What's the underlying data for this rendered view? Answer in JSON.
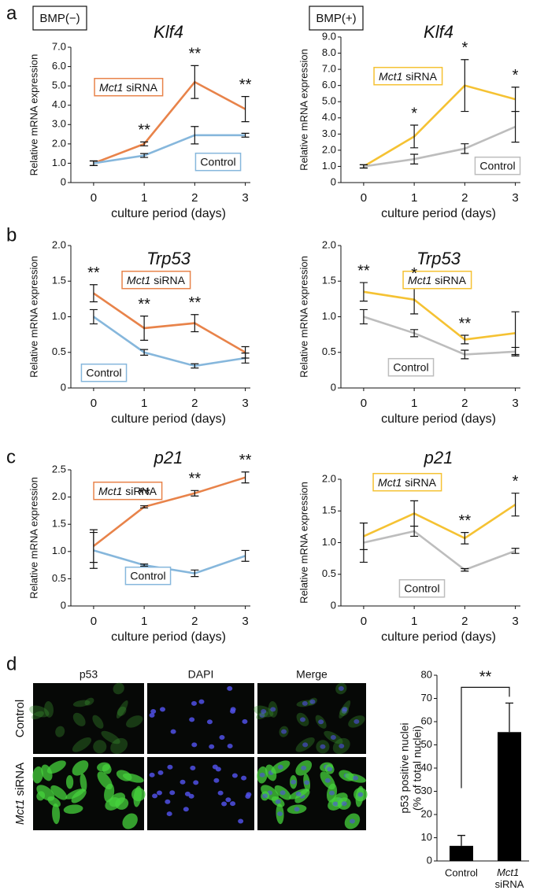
{
  "panel_labels": [
    "a",
    "b",
    "c",
    "d"
  ],
  "image_panel": {
    "columns": [
      "p53",
      "DAPI",
      "Merge"
    ],
    "rows": [
      "Control",
      "Mct1 siRNA"
    ]
  },
  "chart_data": [
    {
      "type": "line",
      "condition": "BMP(−)",
      "title": "Klf4",
      "xlabel": "culture period (days)",
      "ylabel": "Relative mRNA expression",
      "x": [
        0,
        1,
        2,
        3
      ],
      "xlim": [
        -0.45,
        3.1
      ],
      "xticks": [
        0,
        1,
        2,
        3
      ],
      "ylim": [
        0,
        7
      ],
      "yticks": [
        0,
        {
          "value": 1,
          "label": "1.0"
        },
        {
          "value": 2,
          "label": "2.0"
        },
        {
          "value": 3,
          "label": "3.0"
        },
        {
          "value": 4,
          "label": "4.0"
        },
        {
          "value": 5,
          "label": "5.0"
        },
        {
          "value": 6,
          "label": "6.0"
        },
        {
          "value": 7,
          "label": "7.0"
        }
      ],
      "series": [
        {
          "name": "Mct1 siRNA",
          "color": "#e8834a",
          "values": [
            1.0,
            2.0,
            5.2,
            3.8
          ],
          "errors": [
            0.12,
            0.1,
            0.85,
            0.65
          ]
        },
        {
          "name": "Control",
          "color": "#86b7dc",
          "values": [
            1.0,
            1.4,
            2.45,
            2.45
          ],
          "errors": [
            0.12,
            0.1,
            0.45,
            0.1
          ]
        }
      ],
      "stars": [
        null,
        "**",
        "**",
        "**"
      ]
    },
    {
      "type": "line",
      "condition": "BMP(+)",
      "title": "Klf4",
      "xlabel": "culture period (days)",
      "ylabel": "Relative mRNA expression",
      "x": [
        0,
        1,
        2,
        3
      ],
      "xlim": [
        -0.45,
        3.1
      ],
      "xticks": [
        0,
        1,
        2,
        3
      ],
      "ylim": [
        0,
        9
      ],
      "yticks": [
        0,
        {
          "value": 1,
          "label": "1.0"
        },
        {
          "value": 2,
          "label": "2.0"
        },
        {
          "value": 3,
          "label": "3.0"
        },
        {
          "value": 4,
          "label": "4.0"
        },
        {
          "value": 5,
          "label": "5.0"
        },
        {
          "value": 6,
          "label": "6.0"
        },
        {
          "value": 7,
          "label": "7.0"
        },
        {
          "value": 8,
          "label": "8.0"
        },
        {
          "value": 9,
          "label": "9.0"
        }
      ],
      "series": [
        {
          "name": "Mct1 siRNA",
          "color": "#f5c233",
          "values": [
            1.0,
            2.85,
            6.0,
            5.15
          ],
          "errors": [
            0.1,
            0.7,
            1.6,
            0.75
          ]
        },
        {
          "name": "Control",
          "color": "#bdbdbd",
          "values": [
            1.0,
            1.45,
            2.1,
            3.45
          ],
          "errors": [
            0.1,
            0.3,
            0.3,
            0.95
          ]
        }
      ],
      "stars": [
        null,
        "*",
        "*",
        "*"
      ]
    },
    {
      "type": "line",
      "title": "Trp53",
      "xlabel": "culture period (days)",
      "ylabel": "Relative mRNA expression",
      "x": [
        0,
        1,
        2,
        3
      ],
      "xlim": [
        -0.45,
        3.1
      ],
      "xticks": [
        0,
        1,
        2,
        3
      ],
      "ylim": [
        0,
        2
      ],
      "yticks": [
        0,
        0.5,
        {
          "value": 1,
          "label": "1.0"
        },
        1.5,
        {
          "value": 2,
          "label": "2.0"
        }
      ],
      "series": [
        {
          "name": "Mct1 siRNA",
          "color": "#e8834a",
          "values": [
            1.33,
            0.84,
            0.91,
            0.5
          ],
          "errors": [
            0.12,
            0.17,
            0.12,
            0.08
          ]
        },
        {
          "name": "Control",
          "color": "#86b7dc",
          "values": [
            1.0,
            0.5,
            0.31,
            0.42
          ],
          "errors": [
            0.1,
            0.04,
            0.03,
            0.07
          ]
        }
      ],
      "stars": [
        "**",
        "**",
        "**",
        null
      ]
    },
    {
      "type": "line",
      "title": "Trp53",
      "xlabel": "culture period (days)",
      "ylabel": "Relative mRNA expression",
      "x": [
        0,
        1,
        2,
        3
      ],
      "xlim": [
        -0.45,
        3.1
      ],
      "xticks": [
        0,
        1,
        2,
        3
      ],
      "ylim": [
        0,
        2
      ],
      "yticks": [
        0,
        0.5,
        {
          "value": 1,
          "label": "1.0"
        },
        1.5,
        {
          "value": 2,
          "label": "2.0"
        }
      ],
      "series": [
        {
          "name": "Mct1 siRNA",
          "color": "#f5c233",
          "values": [
            1.35,
            1.24,
            0.68,
            0.77
          ],
          "errors": [
            0.13,
            0.2,
            0.06,
            0.3
          ]
        },
        {
          "name": "Control",
          "color": "#bdbdbd",
          "values": [
            1.0,
            0.77,
            0.47,
            0.51
          ],
          "errors": [
            0.1,
            0.05,
            0.06,
            0.06
          ]
        }
      ],
      "stars": [
        "**",
        "*",
        "**",
        null
      ]
    },
    {
      "type": "line",
      "title": "p21",
      "xlabel": "culture period (days)",
      "ylabel": "Relative mRNA expression",
      "x": [
        0,
        1,
        2,
        3
      ],
      "xlim": [
        -0.45,
        3.1
      ],
      "xticks": [
        0,
        1,
        2,
        3
      ],
      "ylim": [
        0,
        2.5
      ],
      "yticks": [
        0,
        0.5,
        {
          "value": 1,
          "label": "1.0"
        },
        1.5,
        {
          "value": 2,
          "label": "2.0"
        },
        2.5
      ],
      "series": [
        {
          "name": "Mct1 siRNA",
          "color": "#e8834a",
          "values": [
            1.1,
            1.82,
            2.07,
            2.36
          ],
          "errors": [
            0.3,
            0.02,
            0.05,
            0.1
          ]
        },
        {
          "name": "Control",
          "color": "#86b7dc",
          "values": [
            1.02,
            0.75,
            0.6,
            0.92
          ],
          "errors": [
            0.33,
            0.02,
            0.06,
            0.1
          ]
        }
      ],
      "stars": [
        null,
        "**",
        "**",
        "**"
      ]
    },
    {
      "type": "line",
      "title": "p21",
      "xlabel": "culture period (days)",
      "ylabel": "Relative mRNA expression",
      "x": [
        0,
        1,
        2,
        3
      ],
      "xlim": [
        -0.45,
        3.1
      ],
      "xticks": [
        0,
        1,
        2,
        3
      ],
      "ylim": [
        0,
        2
      ],
      "yticks": [
        0,
        0.5,
        {
          "value": 1,
          "label": "1.0"
        },
        1.5,
        {
          "value": 2,
          "label": "2.0"
        }
      ],
      "series": [
        {
          "name": "Mct1 siRNA",
          "color": "#f5c233",
          "values": [
            1.1,
            1.46,
            1.07,
            1.6
          ],
          "errors": [
            0.21,
            0.2,
            0.09,
            0.18
          ]
        },
        {
          "name": "Control",
          "color": "#bdbdbd",
          "values": [
            1.0,
            1.18,
            0.57,
            0.87
          ],
          "errors": [
            0.31,
            0.08,
            0.02,
            0.04
          ]
        }
      ],
      "stars": [
        null,
        null,
        "**",
        "*"
      ]
    },
    {
      "type": "bar",
      "ylabel": [
        "p53 positive nuclei",
        "(% of total nuclei)"
      ],
      "categories": [
        "Control",
        "Mct1 siRNA"
      ],
      "values": [
        6.5,
        55.5
      ],
      "errors": [
        4.5,
        12.5
      ],
      "color": "#000000",
      "ylim": [
        0,
        80
      ],
      "yticks": [
        0,
        10,
        20,
        30,
        40,
        50,
        60,
        70,
        80
      ],
      "significance": "**"
    }
  ]
}
